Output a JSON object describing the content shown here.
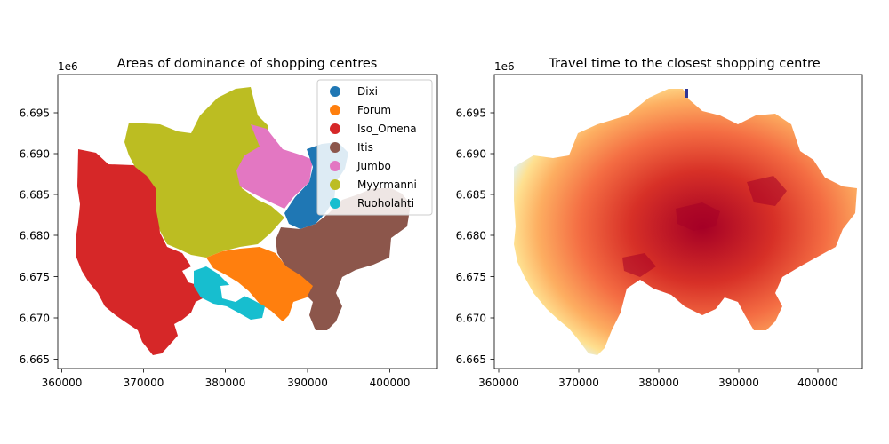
{
  "chart_data": [
    {
      "type": "map",
      "title": "Areas of dominance of shopping centres",
      "offset_label": "1e6",
      "x_ticks": [
        "360000",
        "370000",
        "380000",
        "390000",
        "400000"
      ],
      "y_ticks": [
        "6.665",
        "6.670",
        "6.675",
        "6.680",
        "6.685",
        "6.690",
        "6.695"
      ],
      "xlim": [
        359200,
        406000
      ],
      "ylim": [
        6663700,
        6699800
      ],
      "legend_position": "top-right",
      "legend": [
        {
          "name": "Dixi",
          "color": "#1f77b4"
        },
        {
          "name": "Forum",
          "color": "#ff7f0e"
        },
        {
          "name": "Iso_Omena",
          "color": "#d62728"
        },
        {
          "name": "Itis",
          "color": "#8c564b"
        },
        {
          "name": "Jumbo",
          "color": "#e377c2"
        },
        {
          "name": "Myyrmanni",
          "color": "#bcbd22"
        },
        {
          "name": "Ruoholahti",
          "color": "#17becf"
        }
      ]
    },
    {
      "type": "heatmap",
      "title": "Travel time to the closest shopping centre",
      "offset_label": "1e6",
      "x_ticks": [
        "360000",
        "370000",
        "380000",
        "390000",
        "400000"
      ],
      "y_ticks": [
        "6.665",
        "6.670",
        "6.675",
        "6.680",
        "6.685",
        "6.690",
        "6.695"
      ],
      "xlim": [
        359200,
        406000
      ],
      "ylim": [
        6663700,
        6699800
      ],
      "colormap": "RdYlBu_r"
    }
  ]
}
